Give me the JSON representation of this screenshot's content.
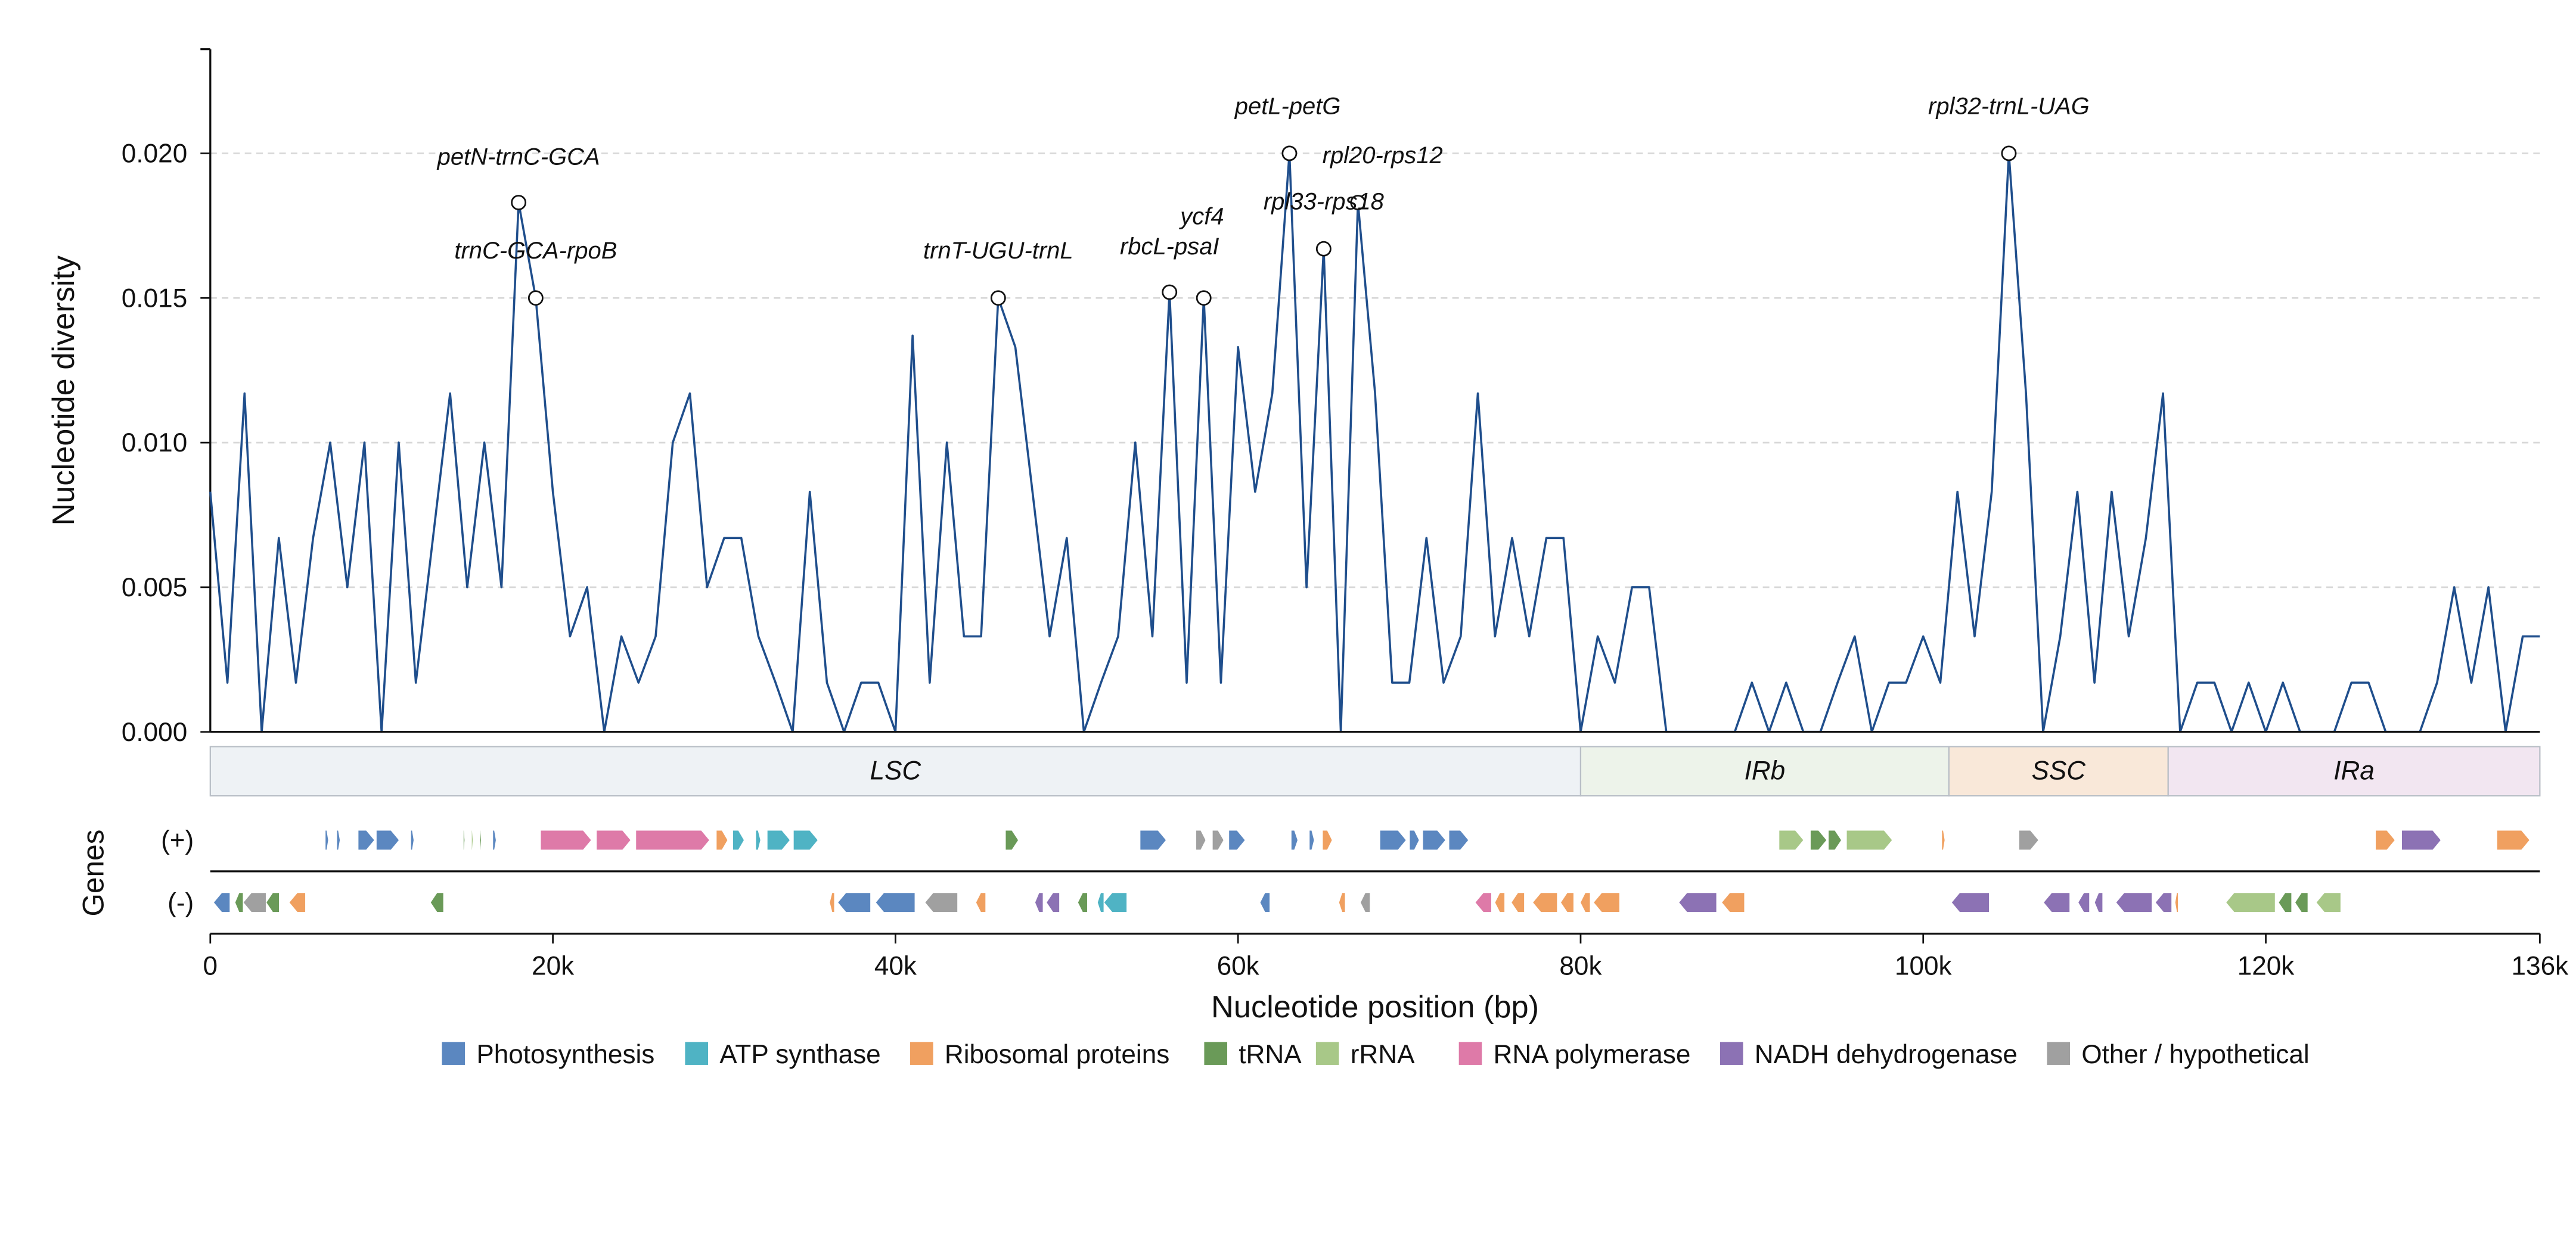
{
  "chart_data": {
    "type": "line",
    "ylabel": "Nucleotide diversity",
    "xlabel": "Nucleotide position (bp)",
    "gene_axis_label": "Genes",
    "xlim": [
      0,
      136000
    ],
    "ylim": [
      0,
      0.0236
    ],
    "xticks": [
      0,
      {
        "value": 20000,
        "label": "20k"
      },
      {
        "value": 40000,
        "label": "40k"
      },
      {
        "value": 60000,
        "label": "60k"
      },
      {
        "value": 80000,
        "label": "80k"
      },
      {
        "value": 100000,
        "label": "100k"
      },
      {
        "value": 120000,
        "label": "120k"
      },
      {
        "value": 136000,
        "label": "136k"
      }
    ],
    "yticks": [
      {
        "value": 0,
        "label": "0.000"
      },
      0.005,
      {
        "value": 0.01,
        "label": "0.010"
      },
      0.015,
      {
        "value": 0.02,
        "label": "0.020"
      }
    ],
    "grid": true,
    "color": "#1f4e8c",
    "x": [
      0,
      1000,
      2000,
      3000,
      4000,
      5000,
      6000,
      7000,
      8000,
      9000,
      10000,
      11000,
      12000,
      13000,
      14000,
      15000,
      16000,
      17000,
      18000,
      19000,
      20000,
      21000,
      22000,
      23000,
      24000,
      25000,
      26000,
      27000,
      28000,
      29000,
      30000,
      31000,
      32000,
      33000,
      34000,
      35000,
      36000,
      37000,
      38000,
      39000,
      40000,
      41000,
      42000,
      43000,
      44000,
      45000,
      46000,
      47000,
      48000,
      49000,
      50000,
      51000,
      52000,
      53000,
      54000,
      55000,
      56000,
      57000,
      58000,
      59000,
      60000,
      61000,
      62000,
      63000,
      64000,
      65000,
      66000,
      67000,
      68000,
      69000,
      70000,
      71000,
      72000,
      73000,
      74000,
      75000,
      76000,
      77000,
      78000,
      79000,
      80000,
      81000,
      82000,
      83000,
      84000,
      85000,
      86000,
      87000,
      88000,
      89000,
      90000,
      91000,
      92000,
      93000,
      94000,
      95000,
      96000,
      97000,
      98000,
      99000,
      100000,
      101000,
      102000,
      103000,
      104000,
      105000,
      106000,
      107000,
      108000,
      109000,
      110000,
      111000,
      112000,
      113000,
      114000,
      115000,
      116000,
      117000,
      118000,
      119000,
      120000,
      121000,
      122000,
      123000,
      124000,
      125000,
      126000,
      127000,
      128000,
      129000,
      130000,
      131000,
      132000,
      133000,
      134000,
      135000,
      136000
    ],
    "values": [
      0.0083,
      0.0017,
      0.0117,
      0,
      0.0067,
      0.0017,
      0.0067,
      0.01,
      0.005,
      0.01,
      0,
      0.01,
      0.0017,
      0.0067,
      0.0117,
      0.005,
      0.01,
      0.005,
      0.0183,
      0.015,
      0.0083,
      0.0033,
      0.005,
      0,
      0.0033,
      0.0017,
      0.0033,
      0.01,
      0.0117,
      0.005,
      0.0067,
      0.0067,
      0.0033,
      0.0017,
      0,
      0.0083,
      0.0017,
      0,
      0.0017,
      0.0017,
      0,
      0.0137,
      0.0017,
      0.01,
      0.0033,
      0.0033,
      0.015,
      0.0133,
      0.0083,
      0.0033,
      0.0067,
      0,
      0.0017,
      0.0033,
      0.01,
      0.0033,
      0.0152,
      0.0017,
      0.015,
      0.0017,
      0.0133,
      0.0083,
      0.0117,
      0.02,
      0.005,
      0.0167,
      0,
      0.0183,
      0.0117,
      0.0017,
      0.0017,
      0.0067,
      0.0017,
      0.0033,
      0.0117,
      0.0033,
      0.0067,
      0.0033,
      0.0067,
      0.0067,
      0,
      0.0033,
      0.0017,
      0.005,
      0.005,
      0,
      0,
      0,
      0,
      0,
      0.0017,
      0,
      0.0017,
      0,
      0,
      0.0017,
      0.0033,
      0,
      0.0017,
      0.0017,
      0.0033,
      0.0017,
      0.0083,
      0.0033,
      0.0083,
      0.02,
      0.0117,
      0,
      0.0033,
      0.0083,
      0.0017,
      0.0083,
      0.0033,
      0.0067,
      0.0117,
      0,
      0.0017,
      0.0017,
      0,
      0.0017,
      0,
      0.0017,
      0,
      0,
      0,
      0.0017,
      0.0017,
      0,
      0,
      0,
      0.0017,
      0.005,
      0.0017,
      0.005,
      0,
      0.0033,
      0.0033
    ],
    "annotations": [
      {
        "text": "petN-trnC-GCA",
        "x": 18000,
        "y": 0.0183
      },
      {
        "text": "trnC-GCA-rpoB",
        "x": 19000,
        "y": 0.015
      },
      {
        "text": "trnT-UGU-trnL",
        "x": 46000,
        "y": 0.015
      },
      {
        "text": "rbcL-psaI",
        "x": 56000,
        "y": 0.0152
      },
      {
        "text": "ycf4",
        "x": 58000,
        "y": 0.015
      },
      {
        "text": "petL-petG",
        "x": 63000,
        "y": 0.02
      },
      {
        "text": "rpl20-rps12",
        "x": 67000,
        "y": 0.0183
      },
      {
        "text": "rpl33-rps18",
        "x": 65000,
        "y": 0.0167
      },
      {
        "text": "rpl32-trnL-UAG",
        "x": 105000,
        "y": 0.02
      }
    ],
    "regions": [
      {
        "name": "LSC",
        "start": 0,
        "end": 80000,
        "color": "#eef2f5"
      },
      {
        "name": "IRb",
        "start": 80000,
        "end": 101500,
        "color": "#edf3ea"
      },
      {
        "name": "SSC",
        "start": 101500,
        "end": 114300,
        "color": "#f9e8d9"
      },
      {
        "name": "IRa",
        "start": 114300,
        "end": 136000,
        "color": "#f2e6f1"
      }
    ],
    "categories": [
      {
        "name": "Photosynthesis",
        "color": "#5b87c0"
      },
      {
        "name": "ATP synthase",
        "color": "#4fb3c4"
      },
      {
        "name": "Ribosomal proteins",
        "color": "#f0a060"
      },
      {
        "name": "tRNA",
        "color": "#6a9a58"
      },
      {
        "name": "rRNA",
        "color": "#a8c888"
      },
      {
        "name": "RNA polymerase",
        "color": "#de7aa8"
      },
      {
        "name": "NADH dehydrogenase",
        "color": "#8c72b4"
      },
      {
        "name": "Other / hypothetical",
        "color": "#a0a0a0"
      }
    ],
    "gene_tracks": [
      {
        "label": "(+)",
        "genes": [
          [
            6710,
            6900,
            0
          ],
          [
            7380,
            7580,
            0
          ],
          [
            8630,
            9590,
            0
          ],
          [
            9690,
            11030,
            0
          ],
          [
            11700,
            11890,
            0
          ],
          [
            14770,
            14860,
            3
          ],
          [
            15250,
            15340,
            4
          ],
          [
            15730,
            15820,
            3
          ],
          [
            16490,
            16690,
            0
          ],
          [
            19280,
            22250,
            5
          ],
          [
            22540,
            24550,
            5
          ],
          [
            24840,
            29150,
            5
          ],
          [
            29540,
            30210,
            2
          ],
          [
            30500,
            31170,
            1
          ],
          [
            31840,
            32130,
            1
          ],
          [
            32510,
            33850,
            1
          ],
          [
            34040,
            35480,
            1
          ],
          [
            46420,
            47180,
            3
          ],
          [
            54280,
            55810,
            0
          ],
          [
            57540,
            58120,
            7
          ],
          [
            58500,
            59170,
            7
          ],
          [
            59460,
            60420,
            0
          ],
          [
            63100,
            63490,
            0
          ],
          [
            64160,
            64450,
            0
          ],
          [
            64930,
            65500,
            2
          ],
          [
            68280,
            69820,
            0
          ],
          [
            70010,
            70580,
            0
          ],
          [
            70780,
            72120,
            0
          ],
          [
            72310,
            73460,
            0
          ],
          [
            91580,
            93020,
            4
          ],
          [
            93410,
            94370,
            3
          ],
          [
            94460,
            95230,
            3
          ],
          [
            95520,
            98200,
            4
          ],
          [
            101080,
            101270,
            2
          ],
          [
            105590,
            106740,
            7
          ],
          [
            126400,
            127550,
            2
          ],
          [
            127930,
            130230,
            6
          ],
          [
            133490,
            135410,
            2
          ]
        ]
      },
      {
        "label": "(-)",
        "genes": [
          [
            190,
            1150,
            0
          ],
          [
            1440,
            1920,
            3
          ],
          [
            1920,
            3260,
            7
          ],
          [
            3260,
            4030,
            3
          ],
          [
            4600,
            5560,
            2
          ],
          [
            12850,
            13620,
            3
          ],
          [
            36150,
            36440,
            2
          ],
          [
            36630,
            38550,
            0
          ],
          [
            38840,
            41140,
            0
          ],
          [
            41720,
            43630,
            7
          ],
          [
            44690,
            45270,
            2
          ],
          [
            48140,
            48620,
            6
          ],
          [
            48810,
            49580,
            6
          ],
          [
            50640,
            51210,
            3
          ],
          [
            51790,
            52170,
            1
          ],
          [
            52170,
            53510,
            1
          ],
          [
            61280,
            61860,
            0
          ],
          [
            65880,
            66260,
            2
          ],
          [
            67140,
            67710,
            7
          ],
          [
            73840,
            74800,
            5
          ],
          [
            74990,
            75570,
            2
          ],
          [
            75950,
            76720,
            2
          ],
          [
            77200,
            78640,
            2
          ],
          [
            78830,
            79600,
            2
          ],
          [
            79980,
            80560,
            2
          ],
          [
            80750,
            82280,
            2
          ],
          [
            85730,
            87940,
            6
          ],
          [
            88230,
            89570,
            2
          ],
          [
            101650,
            103860,
            6
          ],
          [
            107020,
            108560,
            6
          ],
          [
            109040,
            109710,
            6
          ],
          [
            110000,
            110480,
            6
          ],
          [
            111250,
            113360,
            6
          ],
          [
            113550,
            114510,
            6
          ],
          [
            114700,
            114890,
            2
          ],
          [
            117670,
            120550,
            4
          ],
          [
            120740,
            121510,
            3
          ],
          [
            121700,
            122460,
            3
          ],
          [
            122940,
            124380,
            4
          ]
        ]
      }
    ]
  }
}
